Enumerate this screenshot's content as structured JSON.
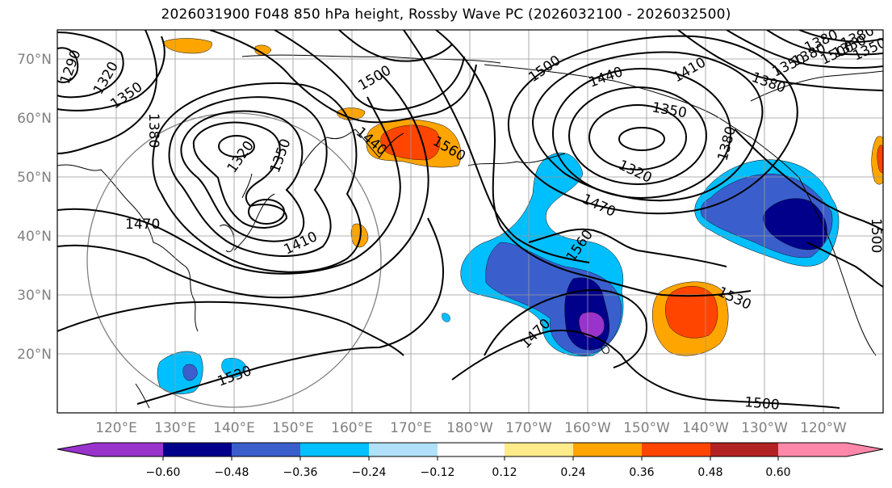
{
  "title": "2026031900 F048 850 hPa height, Rossby Wave PC (2026032100 - 2026032500)",
  "map": {
    "lat_labels": [
      "70°N",
      "60°N",
      "50°N",
      "40°N",
      "30°N",
      "20°N"
    ],
    "lon_labels": [
      "120°E",
      "130°E",
      "140°E",
      "150°E",
      "160°E",
      "170°E",
      "180°W",
      "170°W",
      "160°W",
      "150°W",
      "140°W",
      "130°W",
      "120°W"
    ],
    "contour_labels": [
      "1290",
      "1320",
      "1350",
      "1380",
      "1320",
      "1350",
      "1410",
      "1470",
      "1500",
      "1440",
      "1560",
      "1500",
      "1440",
      "1410",
      "1380",
      "1350",
      "1320",
      "1470",
      "1560",
      "1380",
      "1530",
      "1470",
      "1530",
      "1500",
      "1350",
      "1380",
      "1500",
      "1380",
      "1350",
      "1500",
      "1380",
      "1350"
    ],
    "colors": {
      "purple": "#9933cc",
      "navy": "#00008b",
      "royalblue": "#3a5fcd",
      "deepsky": "#00bfff",
      "lightblue": "#b0e0fa",
      "white": "#ffffff",
      "yellow": "#ffeb8a",
      "orange": "#ffa500",
      "redorange": "#ff4500",
      "darkred": "#b22222",
      "pink": "#ff88aa"
    }
  },
  "colorbar": {
    "ticks": [
      "−0.60",
      "−0.48",
      "−0.36",
      "−0.24",
      "−0.12",
      "0.12",
      "0.24",
      "0.36",
      "0.48",
      "0.60"
    ],
    "colors": [
      "#9933cc",
      "#00008b",
      "#3a5fcd",
      "#00bfff",
      "#b0e0fa",
      "#ffffff",
      "#ffeb8a",
      "#ffa500",
      "#ff4500",
      "#b22222",
      "#ff88aa"
    ]
  }
}
